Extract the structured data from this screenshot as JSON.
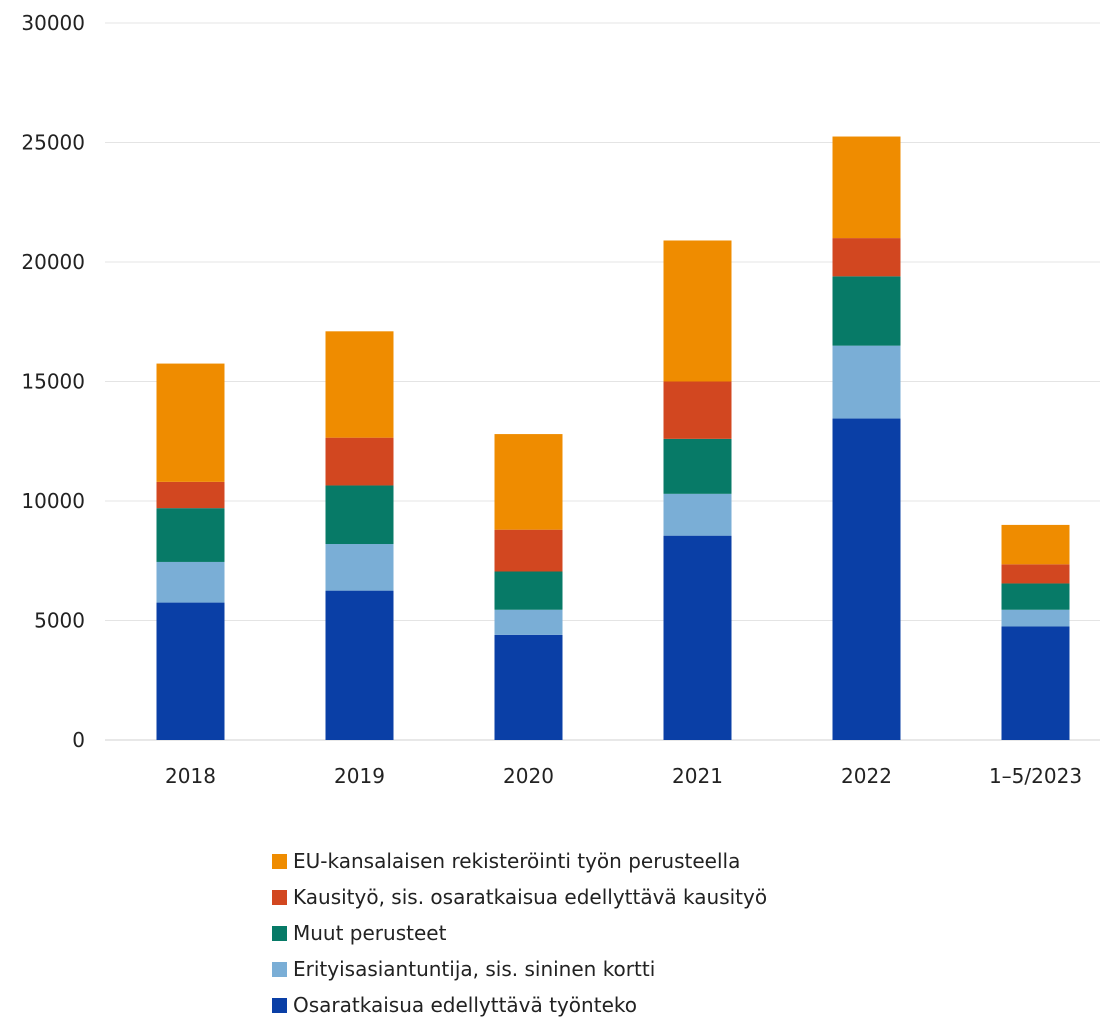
{
  "chart_data": {
    "type": "bar",
    "stacked": true,
    "categories": [
      "2018",
      "2019",
      "2020",
      "2021",
      "2022",
      "1–5/2023"
    ],
    "ylim": [
      0,
      30000
    ],
    "yticks": [
      0,
      5000,
      10000,
      15000,
      20000,
      25000,
      30000
    ],
    "grid": true,
    "legend_position": "bottom",
    "series": [
      {
        "name": "Osaratkaisua edellyttävä työnteko",
        "color": "#0a3fa6",
        "values": [
          5750,
          6250,
          4400,
          8550,
          13450,
          4750
        ]
      },
      {
        "name": "Erityisasiantuntija, sis. sininen kortti",
        "color": "#7aaed6",
        "values": [
          1700,
          1950,
          1050,
          1750,
          3050,
          700
        ]
      },
      {
        "name": "Muut perusteet",
        "color": "#077a67",
        "values": [
          2250,
          2450,
          1600,
          2300,
          2900,
          1100
        ]
      },
      {
        "name": "Kausityö, sis. osaratkaisua edellyttävä kausityö",
        "color": "#d24720",
        "values": [
          1100,
          2000,
          1750,
          2400,
          1600,
          800
        ]
      },
      {
        "name": "EU-kansalaisen rekisteröinti työn perusteella",
        "color": "#ef8c00",
        "values": [
          4950,
          4450,
          4000,
          5900,
          4250,
          1650
        ]
      }
    ]
  }
}
